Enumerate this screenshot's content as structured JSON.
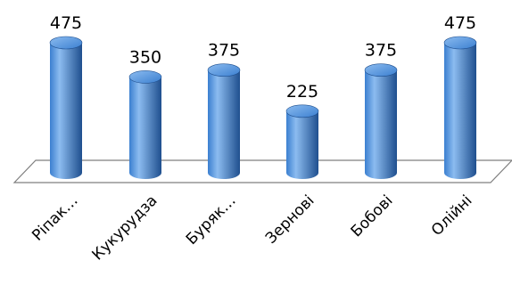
{
  "chart_data": {
    "type": "bar",
    "style": "3d-cylinder",
    "categories": [
      "Ріпак…",
      "Кукурудза",
      "Буряк…",
      "Зернові",
      "Бобові",
      "Олійні"
    ],
    "values": [
      475,
      350,
      375,
      225,
      375,
      475
    ],
    "data_labels": [
      "475",
      "350",
      "375",
      "225",
      "375",
      "475"
    ],
    "title": "",
    "xlabel": "",
    "ylabel": "",
    "ylim": [
      0,
      475
    ],
    "grid": false,
    "legend": "none",
    "bar_color": "#3b7fd0",
    "bar_highlight": "#8cbcf0",
    "bar_shadow": "#1f4f8e",
    "floor_stroke": "#7f7f7f"
  }
}
